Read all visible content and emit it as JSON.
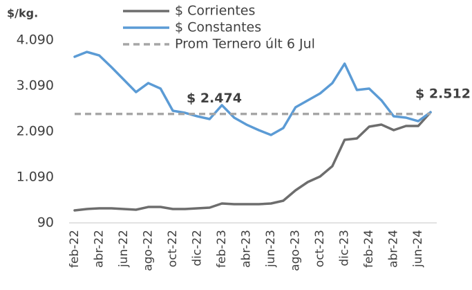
{
  "chart_data": {
    "type": "line",
    "y_label": "$/kg.",
    "categories": [
      "feb-22",
      null,
      "abr-22",
      null,
      "jun-22",
      null,
      "ago-22",
      null,
      "oct-22",
      null,
      "dic-22",
      null,
      "feb-23",
      null,
      "abr-23",
      null,
      "jun-23",
      null,
      "ago-23",
      null,
      "oct-23",
      null,
      "dic-23",
      null,
      "feb-24",
      null,
      "abr-24",
      null,
      "jun-24",
      null
    ],
    "series": [
      {
        "name": "$ Corrientes",
        "color": "#6d6d6d",
        "values": [
          363,
          393,
          408,
          408,
          393,
          378,
          438,
          438,
          393,
          393,
          408,
          423,
          514,
          499,
          499,
          499,
          514,
          575,
          802,
          984,
          1105,
          1332,
          1908,
          1938,
          2196,
          2241,
          2120,
          2211,
          2211,
          2512
        ]
      },
      {
        "name": "$ Constantes",
        "color": "#5b9bd5",
        "values": [
          3726,
          3832,
          3756,
          3499,
          3226,
          2953,
          3150,
          3029,
          2544,
          2499,
          2423,
          2363,
          2666,
          2393,
          2241,
          2120,
          2014,
          2166,
          2620,
          2772,
          2923,
          3150,
          3575,
          2999,
          3029,
          2772,
          2423,
          2393,
          2317,
          2512
        ],
        "value_labels": [
          null,
          null,
          null,
          null,
          null,
          null,
          null,
          null,
          null,
          null,
          null,
          null,
          null,
          null,
          null,
          null,
          null,
          null,
          null,
          null,
          null,
          null,
          null,
          null,
          null,
          null,
          null,
          null,
          null,
          "$ 2.512"
        ]
      },
      {
        "name": "Prom Ternero últ 6 Jul",
        "color": "#a6a6a6",
        "dashed": true,
        "value": 2474,
        "value_label": "$ 2.474"
      }
    ],
    "ylim": [
      90,
      4090
    ],
    "yticks": [
      90,
      {
        "value": 1090,
        "label": "1.090"
      },
      {
        "value": 2090,
        "label": "2.090"
      },
      {
        "value": 3090,
        "label": "3.090"
      },
      {
        "value": 4090,
        "label": "4.090"
      }
    ],
    "grid": false
  }
}
